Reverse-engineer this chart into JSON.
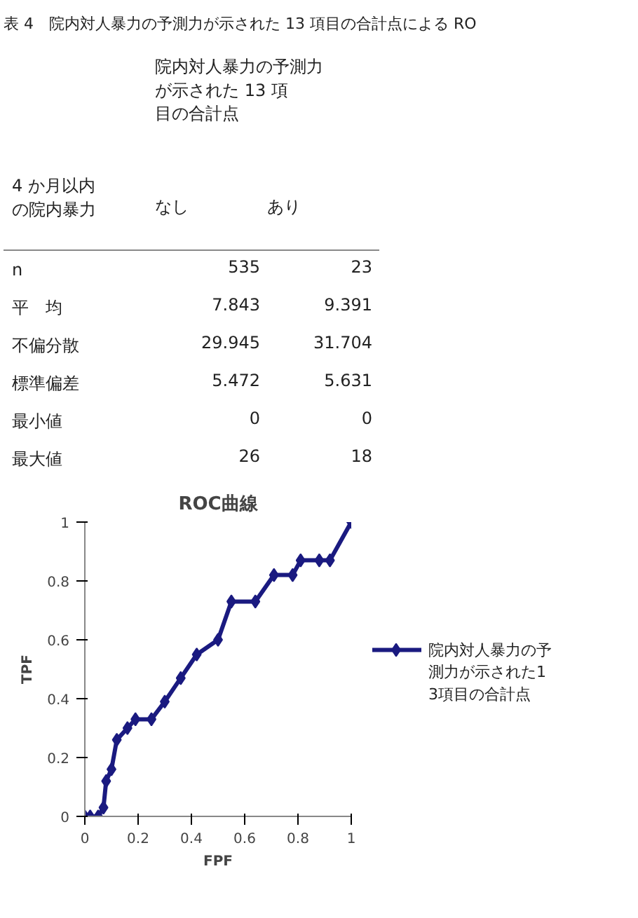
{
  "chart_data": [
    {
      "type": "other",
      "title": "表 4　院内対人暴力の予測力が示された 13 項目の合計点による RO",
      "subtitle": "院内対人暴力の予測力が示された 13 項目の合計点",
      "ylabel": "4 か月以内の院内暴力",
      "categories": [
        "n",
        "平　均",
        "不偏分散",
        "標準偏差",
        "最小値",
        "最大値"
      ],
      "series": [
        {
          "name": "なし",
          "values": [
            535,
            7.843,
            29.945,
            5.472,
            0,
            26
          ]
        },
        {
          "name": "あり",
          "values": [
            23,
            9.391,
            31.704,
            5.631,
            0,
            18
          ]
        }
      ],
      "data_labels": true
    },
    {
      "type": "line",
      "title": "ROC曲線",
      "xlabel": "FPF",
      "ylabel": "TPF",
      "xlim": [
        0,
        1
      ],
      "ylim": [
        0,
        1
      ],
      "xticks": [
        0,
        0.2,
        0.4,
        0.6,
        0.8,
        1
      ],
      "yticks": [
        0,
        0.2,
        0.4,
        0.6,
        0.8,
        1
      ],
      "grid": false,
      "legend": "right",
      "marker": "diamond",
      "line_style": "solid",
      "x": [
        0,
        0.02,
        0.05,
        0.07,
        0.08,
        0.1,
        0.12,
        0.16,
        0.19,
        0.25,
        0.3,
        0.36,
        0.42,
        0.5,
        0.55,
        0.64,
        0.71,
        0.78,
        0.81,
        0.88,
        0.92,
        1
      ],
      "series": [
        {
          "name": "院内対人暴力の予測力が示された13項目の合計点",
          "color": "#1a1a80",
          "values": [
            0,
            0,
            0,
            0.03,
            0.12,
            0.16,
            0.26,
            0.3,
            0.33,
            0.33,
            0.39,
            0.47,
            0.55,
            0.6,
            0.73,
            0.73,
            0.82,
            0.82,
            0.87,
            0.87,
            0.87,
            1
          ]
        }
      ]
    }
  ]
}
